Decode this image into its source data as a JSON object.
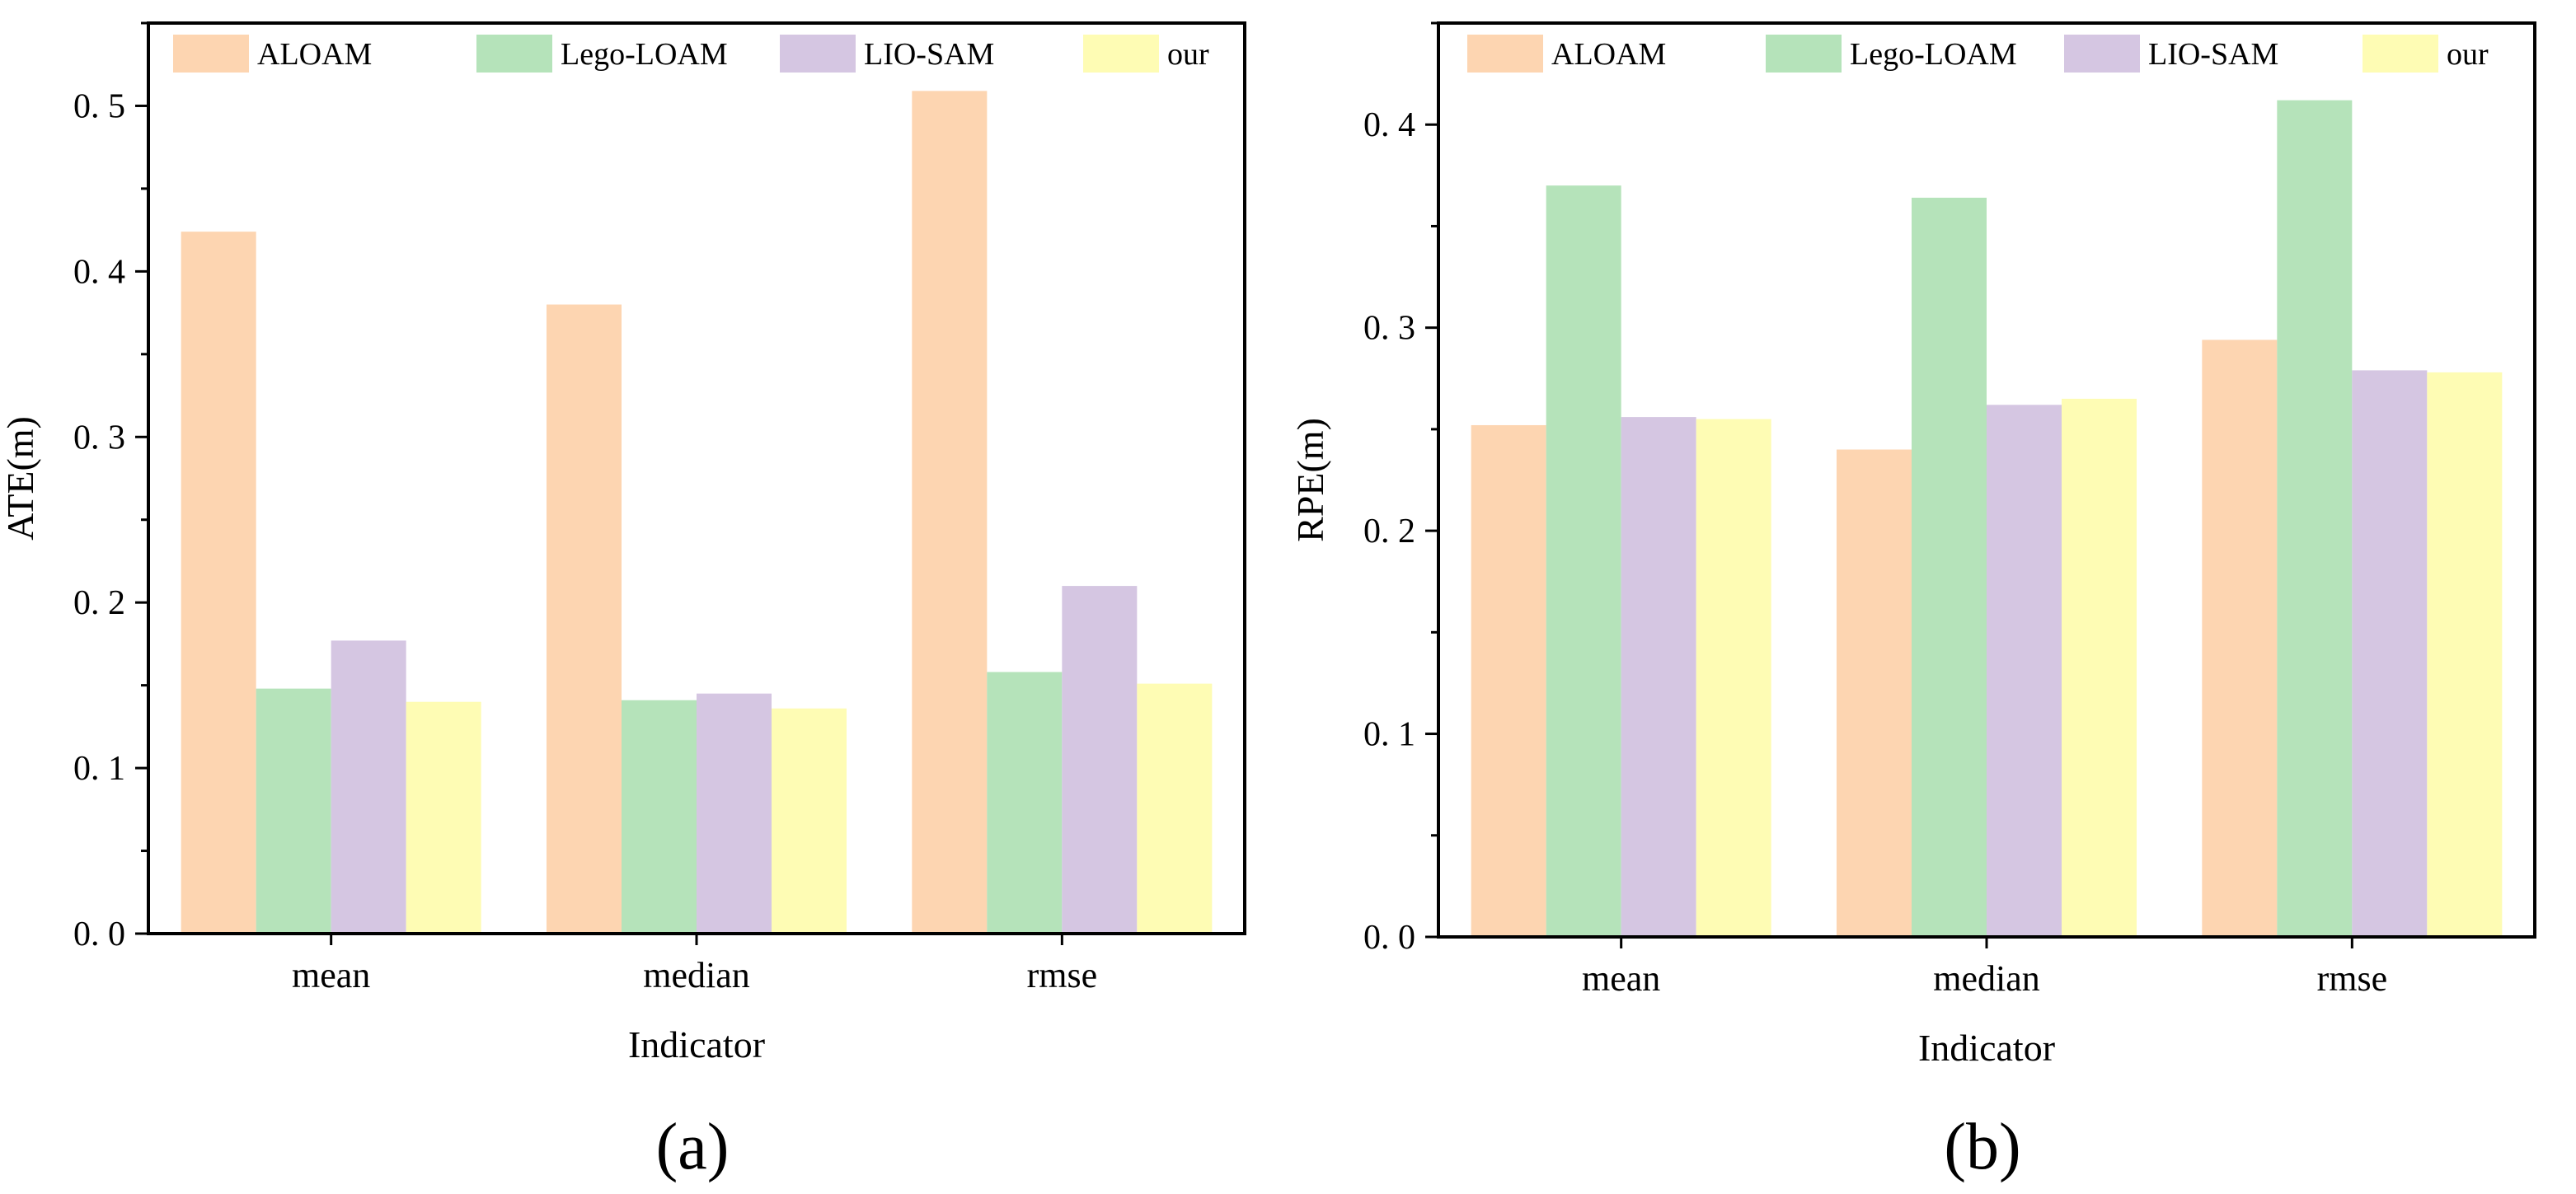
{
  "chart_data": [
    {
      "panel_label": "(a)",
      "type": "bar",
      "categories": [
        "mean",
        "median",
        "rmse"
      ],
      "series": [
        {
          "name": "ALOAM",
          "color": "#FDD5B1",
          "values": [
            0.424,
            0.38,
            0.509
          ]
        },
        {
          "name": "Lego-LOAM",
          "color": "#B5E3BA",
          "values": [
            0.148,
            0.141,
            0.158
          ]
        },
        {
          "name": "LIO-SAM",
          "color": "#D5C6E2",
          "values": [
            0.177,
            0.145,
            0.21
          ]
        },
        {
          "name": "our",
          "color": "#FEFCB4",
          "values": [
            0.14,
            0.136,
            0.151
          ]
        }
      ],
      "xlabel": "Indicator",
      "ylabel": "ATE(m)",
      "ylim": [
        0,
        0.55
      ],
      "yticks": [
        0.0,
        0.1,
        0.2,
        0.3,
        0.4,
        0.5
      ],
      "ytick_labels": [
        "0. 0",
        "0. 1",
        "0. 2",
        "0. 3",
        "0. 4",
        "0. 5"
      ],
      "legend_position": "top",
      "grid": false
    },
    {
      "panel_label": "(b)",
      "type": "bar",
      "categories": [
        "mean",
        "median",
        "rmse"
      ],
      "series": [
        {
          "name": "ALOAM",
          "color": "#FDD5B1",
          "values": [
            0.252,
            0.24,
            0.294
          ]
        },
        {
          "name": "Lego-LOAM",
          "color": "#B5E3BA",
          "values": [
            0.37,
            0.364,
            0.412
          ]
        },
        {
          "name": "LIO-SAM",
          "color": "#D5C6E2",
          "values": [
            0.256,
            0.262,
            0.279
          ]
        },
        {
          "name": "our",
          "color": "#FEFCB4",
          "values": [
            0.255,
            0.265,
            0.278
          ]
        }
      ],
      "xlabel": "Indicator",
      "ylabel": "RPE(m)",
      "ylim": [
        0,
        0.45
      ],
      "yticks": [
        0.0,
        0.1,
        0.2,
        0.3,
        0.4
      ],
      "ytick_labels": [
        "0. 0",
        "0. 1",
        "0. 2",
        "0. 3",
        "0. 4"
      ],
      "legend_position": "top",
      "grid": false
    }
  ]
}
